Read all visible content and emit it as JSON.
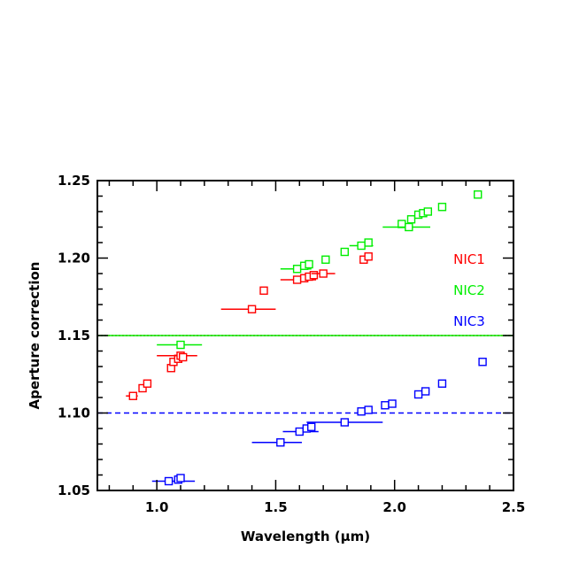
{
  "chart_data": {
    "type": "scatter",
    "xlabel": "Wavelength (μm)",
    "ylabel": "Aperture correction",
    "xlim": [
      0.75,
      2.5
    ],
    "ylim": [
      1.05,
      1.25
    ],
    "x_ticks": [
      {
        "value": 1.0,
        "label": "1.0"
      },
      {
        "value": 1.5,
        "label": "1.5"
      },
      {
        "value": 2.0,
        "label": "2.0"
      },
      {
        "value": 2.5,
        "label": "2.5"
      }
    ],
    "y_ticks": [
      {
        "value": 1.05,
        "label": "1.05"
      },
      {
        "value": 1.1,
        "label": "1.10"
      },
      {
        "value": 1.15,
        "label": "1.15"
      },
      {
        "value": 1.2,
        "label": "1.20"
      },
      {
        "value": 1.25,
        "label": "1.25"
      }
    ],
    "legend_placement": "right",
    "reference_lines": [
      {
        "series": "NIC1",
        "y": 1.15,
        "style": "dotted",
        "color": "#ff0000"
      },
      {
        "series": "NIC2",
        "y": 1.15,
        "style": "solid",
        "color": "#00ee00"
      },
      {
        "series": "NIC3",
        "y": 1.1,
        "style": "dashed",
        "color": "#0000ff"
      }
    ],
    "series": [
      {
        "name": "NIC1",
        "color": "#ff0000",
        "points": [
          {
            "x": 0.9,
            "y": 1.111,
            "xerr": [
              0.87,
              0.92
            ]
          },
          {
            "x": 0.94,
            "y": 1.116
          },
          {
            "x": 0.96,
            "y": 1.119
          },
          {
            "x": 1.06,
            "y": 1.129
          },
          {
            "x": 1.07,
            "y": 1.133
          },
          {
            "x": 1.09,
            "y": 1.135
          },
          {
            "x": 1.1,
            "y": 1.137,
            "xerr": [
              1.0,
              1.17
            ]
          },
          {
            "x": 1.11,
            "y": 1.136
          },
          {
            "x": 1.4,
            "y": 1.167,
            "xerr": [
              1.27,
              1.5
            ]
          },
          {
            "x": 1.45,
            "y": 1.179
          },
          {
            "x": 1.59,
            "y": 1.186,
            "xerr": [
              1.52,
              1.67
            ]
          },
          {
            "x": 1.62,
            "y": 1.187
          },
          {
            "x": 1.64,
            "y": 1.188
          },
          {
            "x": 1.66,
            "y": 1.189
          },
          {
            "x": 1.7,
            "y": 1.19,
            "xerr": [
              1.65,
              1.75
            ]
          },
          {
            "x": 1.87,
            "y": 1.199
          },
          {
            "x": 1.89,
            "y": 1.201
          }
        ]
      },
      {
        "name": "NIC2",
        "color": "#00ee00",
        "points": [
          {
            "x": 1.1,
            "y": 1.144,
            "xerr": [
              1.0,
              1.19
            ]
          },
          {
            "x": 1.59,
            "y": 1.193,
            "xerr": [
              1.52,
              1.65
            ]
          },
          {
            "x": 1.62,
            "y": 1.195
          },
          {
            "x": 1.64,
            "y": 1.196
          },
          {
            "x": 1.71,
            "y": 1.199
          },
          {
            "x": 1.79,
            "y": 1.204
          },
          {
            "x": 1.86,
            "y": 1.208,
            "xerr": [
              1.81,
              1.91
            ]
          },
          {
            "x": 1.89,
            "y": 1.21
          },
          {
            "x": 2.03,
            "y": 1.222
          },
          {
            "x": 2.06,
            "y": 1.22,
            "xerr": [
              1.95,
              2.15
            ]
          },
          {
            "x": 2.07,
            "y": 1.225
          },
          {
            "x": 2.1,
            "y": 1.228
          },
          {
            "x": 2.12,
            "y": 1.229
          },
          {
            "x": 2.14,
            "y": 1.23
          },
          {
            "x": 2.2,
            "y": 1.233
          },
          {
            "x": 2.35,
            "y": 1.241
          }
        ]
      },
      {
        "name": "NIC3",
        "color": "#0000ff",
        "points": [
          {
            "x": 1.05,
            "y": 1.056,
            "xerr": [
              0.98,
              1.16
            ]
          },
          {
            "x": 1.09,
            "y": 1.057
          },
          {
            "x": 1.1,
            "y": 1.058
          },
          {
            "x": 1.52,
            "y": 1.081,
            "xerr": [
              1.4,
              1.61
            ]
          },
          {
            "x": 1.6,
            "y": 1.088,
            "xerr": [
              1.53,
              1.68
            ]
          },
          {
            "x": 1.63,
            "y": 1.09
          },
          {
            "x": 1.65,
            "y": 1.091
          },
          {
            "x": 1.79,
            "y": 1.094,
            "xerr": [
              1.63,
              1.95
            ]
          },
          {
            "x": 1.86,
            "y": 1.101
          },
          {
            "x": 1.89,
            "y": 1.102
          },
          {
            "x": 1.96,
            "y": 1.105
          },
          {
            "x": 1.99,
            "y": 1.106
          },
          {
            "x": 2.1,
            "y": 1.112
          },
          {
            "x": 2.13,
            "y": 1.114
          },
          {
            "x": 2.2,
            "y": 1.119
          },
          {
            "x": 2.37,
            "y": 1.133
          }
        ]
      }
    ]
  }
}
